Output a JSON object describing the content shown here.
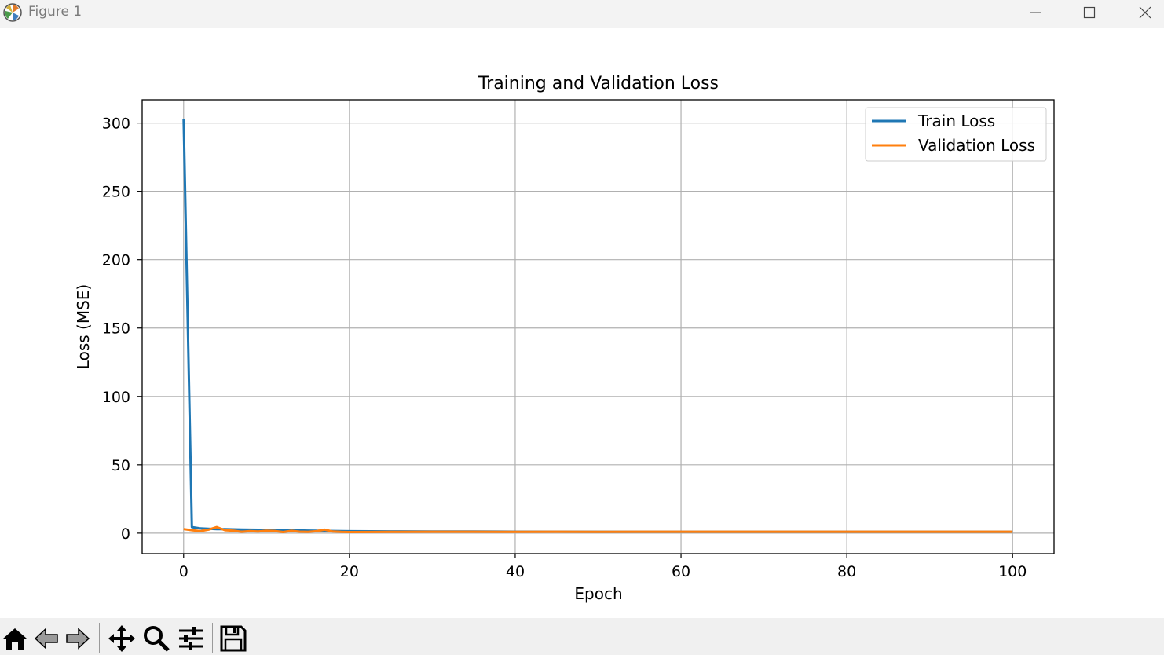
{
  "window": {
    "title": "Figure 1"
  },
  "icons": {
    "app": "matplotlib-icon",
    "minimize": "minimize-icon",
    "maximize": "maximize-icon",
    "close": "close-icon",
    "home": "home-icon",
    "back": "back-arrow-icon",
    "forward": "forward-arrow-icon",
    "pan": "pan-icon",
    "zoom": "zoom-icon",
    "configure": "configure-subplots-icon",
    "save": "save-icon"
  },
  "chart_data": {
    "type": "line",
    "title": "Training and Validation Loss",
    "xlabel": "Epoch",
    "ylabel": "Loss (MSE)",
    "xlim": [
      -5,
      105
    ],
    "ylim": [
      -15,
      317
    ],
    "xticks": [
      0,
      20,
      40,
      60,
      80,
      100
    ],
    "yticks": [
      0,
      50,
      100,
      150,
      200,
      250,
      300
    ],
    "grid": true,
    "legend_position": "top-right",
    "series": [
      {
        "name": "Train Loss",
        "color": "#1f77b4",
        "x": [
          0,
          1,
          2,
          3,
          4,
          5,
          6,
          7,
          8,
          9,
          10,
          11,
          12,
          13,
          14,
          15,
          16,
          17,
          18,
          19,
          20,
          25,
          30,
          35,
          40,
          45,
          50,
          55,
          60,
          65,
          70,
          75,
          80,
          85,
          90,
          95,
          100
        ],
        "y": [
          303,
          4.5,
          3.5,
          3.2,
          3.0,
          2.9,
          2.8,
          2.7,
          2.6,
          2.5,
          2.4,
          2.3,
          2.2,
          2.1,
          2.0,
          1.9,
          1.8,
          1.7,
          1.6,
          1.5,
          1.4,
          1.3,
          1.2,
          1.2,
          1.1,
          1.1,
          1.0,
          1.0,
          1.0,
          1.0,
          1.0,
          1.0,
          1.0,
          1.0,
          1.0,
          1.0,
          1.0
        ]
      },
      {
        "name": "Validation Loss",
        "color": "#ff7f0e",
        "x": [
          0,
          1,
          2,
          3,
          4,
          5,
          6,
          7,
          8,
          9,
          10,
          11,
          12,
          13,
          14,
          15,
          16,
          17,
          18,
          19,
          20,
          25,
          30,
          35,
          40,
          45,
          50,
          55,
          60,
          65,
          70,
          75,
          80,
          85,
          90,
          95,
          100
        ],
        "y": [
          3.0,
          2.2,
          1.5,
          2.6,
          4.5,
          2.2,
          1.8,
          1.0,
          1.5,
          1.2,
          1.8,
          1.6,
          0.8,
          1.7,
          1.1,
          0.9,
          1.4,
          2.6,
          1.2,
          0.9,
          0.8,
          0.9,
          1.0,
          1.0,
          0.9,
          1.0,
          0.9,
          1.0,
          1.0,
          1.0,
          1.0,
          1.0,
          1.0,
          1.0,
          1.0,
          1.0,
          1.0
        ]
      }
    ]
  }
}
